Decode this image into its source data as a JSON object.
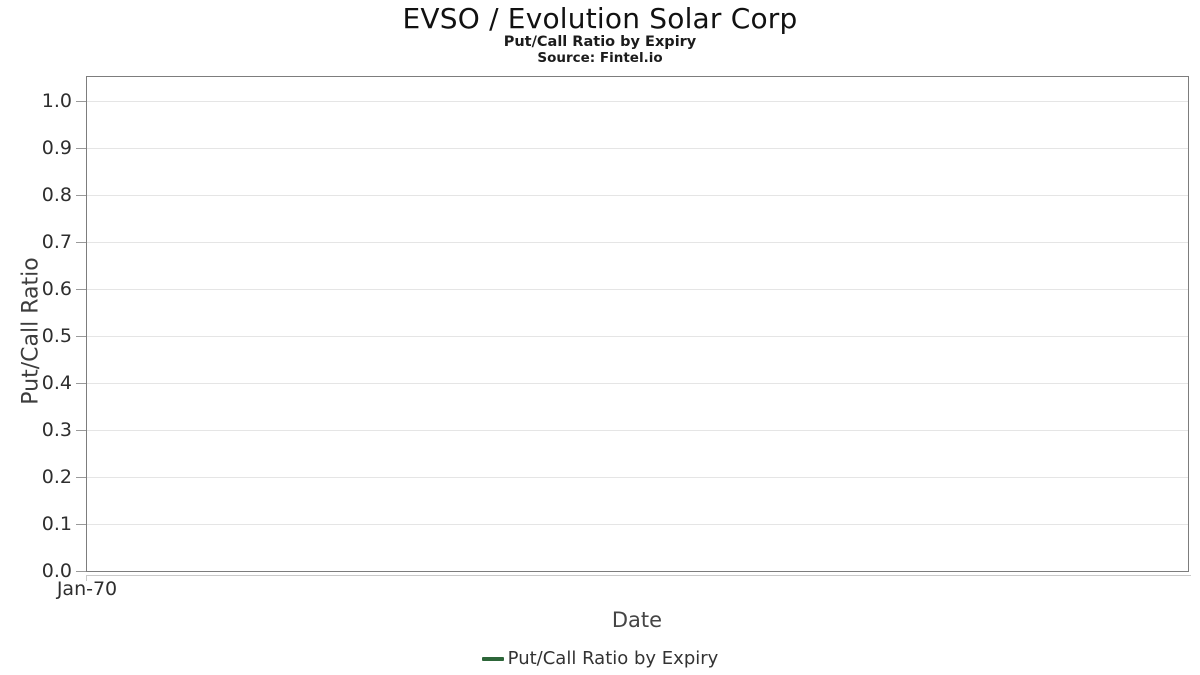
{
  "header": {
    "title": "EVSO / Evolution Solar Corp",
    "subtitle": "Put/Call Ratio by Expiry",
    "source": "Source: Fintel.io"
  },
  "chart_data": {
    "type": "line",
    "title": "EVSO / Evolution Solar Corp",
    "subtitle": "Put/Call Ratio by Expiry",
    "source_note": "Source: Fintel.io",
    "xlabel": "Date",
    "ylabel": "Put/Call Ratio",
    "ylim": [
      0.0,
      1.05
    ],
    "y_ticks": [
      0.0,
      0.1,
      0.2,
      0.3,
      0.4,
      0.5,
      0.6,
      0.7,
      0.8,
      0.9,
      1.0
    ],
    "y_tick_labels": [
      "0.0",
      "0.1",
      "0.2",
      "0.3",
      "0.4",
      "0.5",
      "0.6",
      "0.7",
      "0.8",
      "0.9",
      "1.0"
    ],
    "x_tick_labels": [
      "Jan-70"
    ],
    "grid": "horizontal-only",
    "legend": {
      "position": "bottom-center",
      "entries": [
        {
          "label": "Put/Call Ratio by Expiry",
          "marker": "line",
          "color": "#2d6639"
        }
      ]
    },
    "series": [
      {
        "name": "Put/Call Ratio by Expiry",
        "color": "#2d6639",
        "points": []
      }
    ],
    "colors": {
      "plot_border": "#7d7d7d",
      "gridline": "#e5e5e5",
      "x_axis_line": "#c9c9c9",
      "tick_text": "#2e2e2e",
      "title_text": "#111111"
    }
  }
}
